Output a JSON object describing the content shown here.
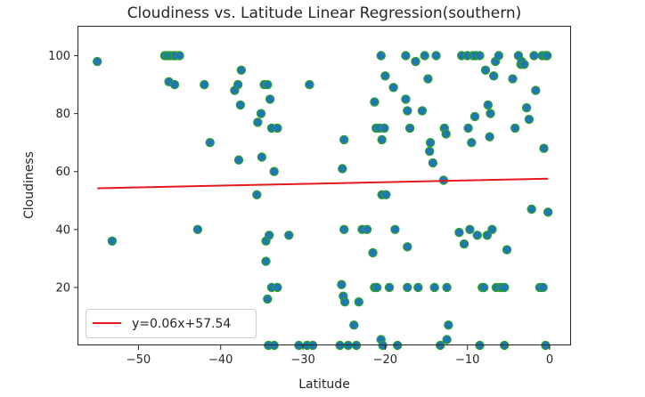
{
  "chart_data": {
    "type": "scatter",
    "title": "Cloudiness vs. Latitude Linear Regression(southern)",
    "xlabel": "Latitude",
    "ylabel": "Cloudiness",
    "xlim": [
      -57.3,
      2.6
    ],
    "ylim": [
      0,
      110
    ],
    "xticks": [
      -50,
      -40,
      -30,
      -20,
      -10,
      0
    ],
    "xtick_labels": [
      "−50",
      "−40",
      "−30",
      "−20",
      "−10",
      "0"
    ],
    "yticks": [
      20,
      40,
      60,
      80,
      100
    ],
    "ytick_labels": [
      "20",
      "40",
      "60",
      "80",
      "100"
    ],
    "grid": false,
    "legend_position": "lower-left",
    "colors": {
      "marker_fill": "#1f77b4",
      "marker_edge": "#2ca02c",
      "regression_line": "#e31a1c"
    },
    "regression": {
      "label": "y=0.06x+57.54",
      "slope": 0.06,
      "intercept": 57.54,
      "x_range": [
        -55,
        -0.2
      ]
    },
    "series": [
      {
        "points": [
          [
            -55,
            98
          ],
          [
            -53.2,
            36
          ],
          [
            -46.8,
            100
          ],
          [
            -46.5,
            100
          ],
          [
            -46.2,
            100
          ],
          [
            -45.8,
            100
          ],
          [
            -45.5,
            100
          ],
          [
            -45,
            100
          ],
          [
            -46.3,
            91
          ],
          [
            -45.6,
            90
          ],
          [
            -42.8,
            40
          ],
          [
            -42,
            90
          ],
          [
            -41.3,
            70
          ],
          [
            -38.3,
            88
          ],
          [
            -37.9,
            90
          ],
          [
            -37.5,
            95
          ],
          [
            -37.6,
            83
          ],
          [
            -37.8,
            64
          ],
          [
            -35.5,
            77
          ],
          [
            -35.1,
            80
          ],
          [
            -35.6,
            52
          ],
          [
            -35,
            65
          ],
          [
            -34.7,
            90
          ],
          [
            -34.3,
            90
          ],
          [
            -34,
            85
          ],
          [
            -33.8,
            75
          ],
          [
            -33.5,
            60
          ],
          [
            -33.1,
            75
          ],
          [
            -34.5,
            36
          ],
          [
            -34.1,
            38
          ],
          [
            -34.5,
            29
          ],
          [
            -34.3,
            16
          ],
          [
            -33.8,
            20
          ],
          [
            -33.1,
            20
          ],
          [
            -34.2,
            0
          ],
          [
            -33.5,
            0
          ],
          [
            -31.7,
            38
          ],
          [
            -29.2,
            90
          ],
          [
            -30.5,
            0
          ],
          [
            -29.5,
            0
          ],
          [
            -28.8,
            0
          ],
          [
            -25.2,
            61
          ],
          [
            -25,
            71
          ],
          [
            -25,
            40
          ],
          [
            -25.3,
            21
          ],
          [
            -25.1,
            17
          ],
          [
            -24.9,
            15
          ],
          [
            -25.5,
            0
          ],
          [
            -24.5,
            0
          ],
          [
            -23.8,
            7
          ],
          [
            -23.5,
            0
          ],
          [
            -23.2,
            15
          ],
          [
            -22.8,
            40
          ],
          [
            -22.2,
            40
          ],
          [
            -21.5,
            32
          ],
          [
            -21.3,
            20
          ],
          [
            -21,
            20
          ],
          [
            -21.3,
            84
          ],
          [
            -21.1,
            75
          ],
          [
            -20.7,
            75
          ],
          [
            -20.5,
            100
          ],
          [
            -20.4,
            71
          ],
          [
            -20.1,
            75
          ],
          [
            -20,
            93
          ],
          [
            -20.4,
            52
          ],
          [
            -19.9,
            52
          ],
          [
            -19.5,
            20
          ],
          [
            -19,
            89
          ],
          [
            -18.8,
            40
          ],
          [
            -20.5,
            2
          ],
          [
            -20.3,
            0
          ],
          [
            -18.5,
            0
          ],
          [
            -17.5,
            100
          ],
          [
            -17.5,
            85
          ],
          [
            -17.3,
            81
          ],
          [
            -17.3,
            20
          ],
          [
            -17.3,
            34
          ],
          [
            -17,
            75
          ],
          [
            -16.3,
            98
          ],
          [
            -16,
            20
          ],
          [
            -15.5,
            81
          ],
          [
            -15.2,
            100
          ],
          [
            -14.8,
            92
          ],
          [
            -14.6,
            67
          ],
          [
            -14.5,
            70
          ],
          [
            -14.2,
            63
          ],
          [
            -14,
            20
          ],
          [
            -13.8,
            100
          ],
          [
            -13.3,
            0
          ],
          [
            -12.9,
            57
          ],
          [
            -12.8,
            75
          ],
          [
            -12.6,
            73
          ],
          [
            -12.5,
            20
          ],
          [
            -12.5,
            2
          ],
          [
            -12.3,
            7
          ],
          [
            -11,
            39
          ],
          [
            -10.7,
            100
          ],
          [
            -10.4,
            35
          ],
          [
            -10,
            100
          ],
          [
            -9.9,
            75
          ],
          [
            -9.7,
            40
          ],
          [
            -9.5,
            70
          ],
          [
            -9.3,
            100
          ],
          [
            -9.1,
            79
          ],
          [
            -9,
            100
          ],
          [
            -8.8,
            38
          ],
          [
            -8.5,
            100
          ],
          [
            -8.2,
            20
          ],
          [
            -8,
            20
          ],
          [
            -7.8,
            95
          ],
          [
            -7.6,
            38
          ],
          [
            -7.5,
            83
          ],
          [
            -7.3,
            72
          ],
          [
            -7.2,
            80
          ],
          [
            -7,
            40
          ],
          [
            -6.8,
            93
          ],
          [
            -6.6,
            98
          ],
          [
            -6.2,
            100
          ],
          [
            -6.5,
            20
          ],
          [
            -6,
            20
          ],
          [
            -5.8,
            20
          ],
          [
            -5.5,
            20
          ],
          [
            -5.2,
            33
          ],
          [
            -4.5,
            92
          ],
          [
            -4.2,
            75
          ],
          [
            -3.8,
            100
          ],
          [
            -3.5,
            97
          ],
          [
            -3.4,
            98
          ],
          [
            -3.1,
            97
          ],
          [
            -2.8,
            82
          ],
          [
            -2.5,
            78
          ],
          [
            -2.2,
            47
          ],
          [
            -1.9,
            100
          ],
          [
            -1.7,
            88
          ],
          [
            -1.2,
            20
          ],
          [
            -0.9,
            100
          ],
          [
            -0.8,
            20
          ],
          [
            -0.7,
            68
          ],
          [
            -0.5,
            100
          ],
          [
            -0.3,
            100
          ],
          [
            -0.2,
            46
          ],
          [
            -8.5,
            0
          ],
          [
            -5.5,
            0
          ],
          [
            -0.5,
            0
          ]
        ]
      }
    ]
  }
}
